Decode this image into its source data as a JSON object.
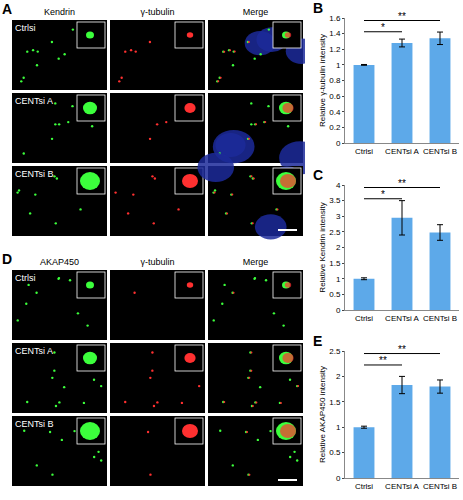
{
  "figure": {
    "image_panels": [
      {
        "label": "A",
        "columns": [
          "Kendrin",
          "γ-tubulin",
          "Merge"
        ],
        "rows": [
          "Ctrlsi",
          "CENTsi A",
          "CENTsi B"
        ]
      },
      {
        "label": "D",
        "columns": [
          "AKAP450",
          "γ-tubulin",
          "Merge"
        ],
        "rows": [
          "Ctrlsi",
          "CENTsi A",
          "CENTsi B"
        ]
      }
    ]
  },
  "chart_data": [
    {
      "type": "bar",
      "title": "B",
      "categories": [
        "Ctrlsi",
        "CENTsi A",
        "CENTsi B"
      ],
      "values": [
        1,
        1.28,
        1.34
      ],
      "errors": [
        0.005,
        0.05,
        0.08
      ],
      "color": "#5da9e9",
      "y_label": "Relative γ-tubulin intensity",
      "ylim": [
        0,
        1.6
      ],
      "yticks": [
        0,
        0.2,
        0.4,
        0.6,
        0.8,
        1,
        1.2,
        1.4,
        1.6
      ],
      "significance": [
        {
          "from": "Ctrlsi",
          "to": "CENTsi A",
          "label": "*"
        },
        {
          "from": "Ctrlsi",
          "to": "CENTsi B",
          "label": "**"
        }
      ]
    },
    {
      "type": "bar",
      "title": "C",
      "categories": [
        "Ctrlsi",
        "CENTsi A",
        "CENTsi B"
      ],
      "values": [
        1,
        2.95,
        2.48
      ],
      "errors": [
        0.03,
        0.55,
        0.25
      ],
      "color": "#5da9e9",
      "y_label": "Relative Kendrin intensity",
      "ylim": [
        0,
        4
      ],
      "yticks": [
        0,
        0.5,
        1,
        1.5,
        2,
        2.5,
        3,
        3.5,
        4
      ],
      "significance": [
        {
          "from": "Ctrlsi",
          "to": "CENTsi A",
          "label": "*"
        },
        {
          "from": "Ctrlsi",
          "to": "CENTsi B",
          "label": "**"
        }
      ]
    },
    {
      "type": "bar",
      "title": "E",
      "categories": [
        "Ctrlsi",
        "CENTsi A",
        "CENTsi B"
      ],
      "values": [
        1,
        1.83,
        1.8
      ],
      "errors": [
        0.02,
        0.17,
        0.13
      ],
      "color": "#5da9e9",
      "y_label": "Relative AKAP450 intensity",
      "ylim": [
        0,
        2.5
      ],
      "yticks": [
        0,
        0.5,
        1,
        1.5,
        2,
        2.5
      ],
      "significance": [
        {
          "from": "Ctrlsi",
          "to": "CENTsi A",
          "label": "**"
        },
        {
          "from": "Ctrlsi",
          "to": "CENTsi B",
          "label": "**"
        }
      ]
    }
  ]
}
